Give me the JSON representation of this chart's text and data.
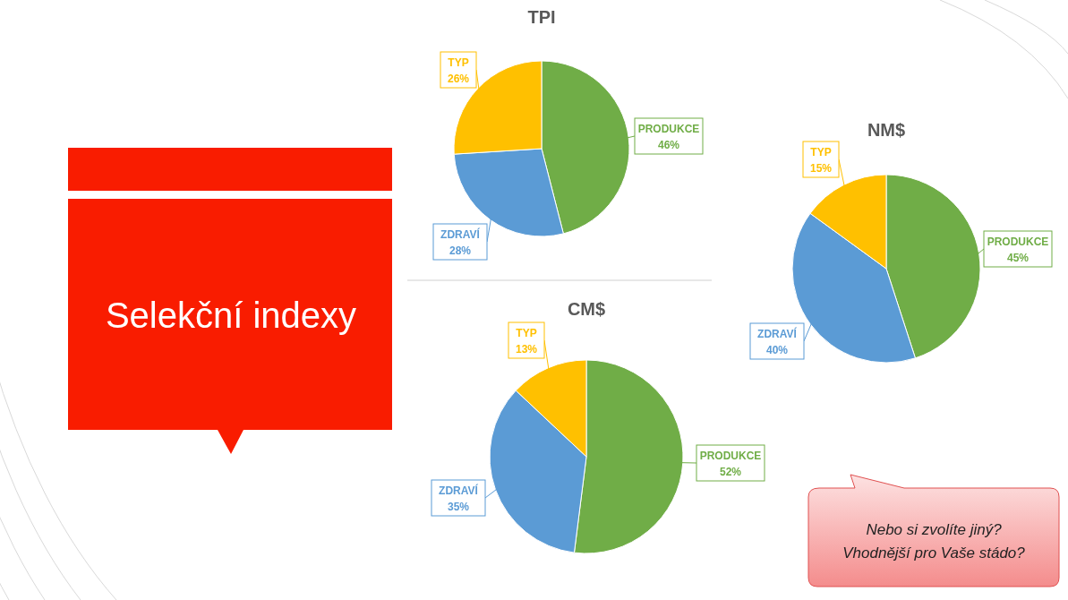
{
  "chart_data": [
    {
      "type": "other",
      "title": "Selekční indexy"
    },
    {
      "type": "pie",
      "title": "TPI",
      "categories": [
        "PRODUKCE",
        "ZDRAVÍ",
        "TYP"
      ],
      "values": [
        46,
        28,
        26
      ],
      "colors": [
        "#70ad47",
        "#5b9bd5",
        "#ffc000"
      ],
      "value_labels": [
        "46%",
        "28%",
        "26%"
      ]
    },
    {
      "type": "pie",
      "title": "NM$",
      "categories": [
        "PRODUKCE",
        "ZDRAVÍ",
        "TYP"
      ],
      "values": [
        45,
        40,
        15
      ],
      "colors": [
        "#70ad47",
        "#5b9bd5",
        "#ffc000"
      ],
      "value_labels": [
        "45%",
        "40%",
        "15%"
      ]
    },
    {
      "type": "pie",
      "title": "CM$",
      "categories": [
        "PRODUKCE",
        "ZDRAVÍ",
        "TYP"
      ],
      "values": [
        52,
        35,
        13
      ],
      "colors": [
        "#70ad47",
        "#5b9bd5",
        "#ffc000"
      ],
      "value_labels": [
        "52%",
        "35%",
        "13%"
      ]
    },
    {
      "type": "other",
      "annotations": [
        "Nebo si zvolíte jiný?",
        "Vhodnější pro Vaše stádo?"
      ]
    }
  ]
}
